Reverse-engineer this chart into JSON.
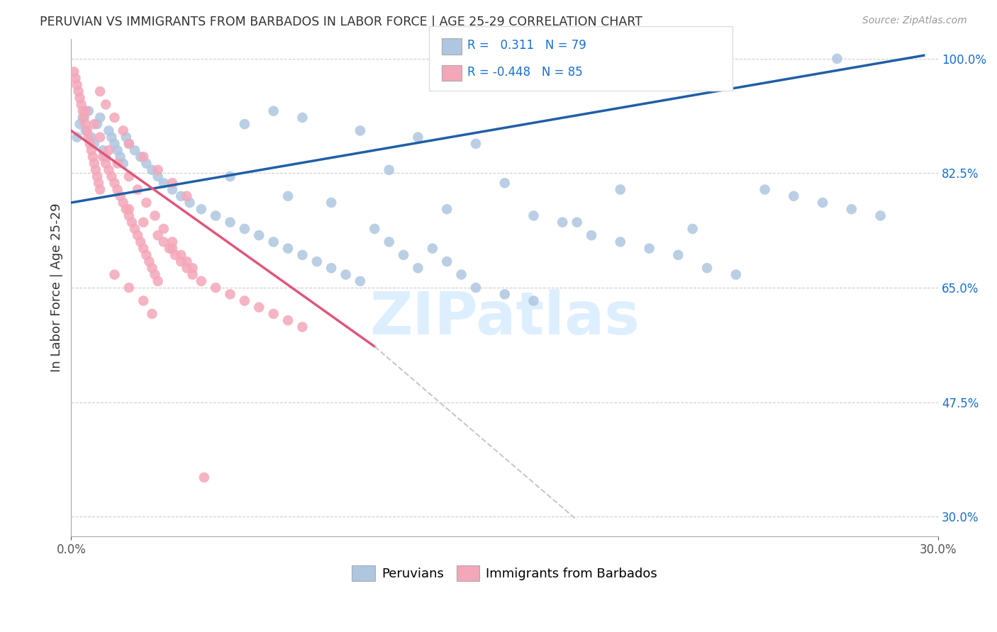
{
  "title": "PERUVIAN VS IMMIGRANTS FROM BARBADOS IN LABOR FORCE | AGE 25-29 CORRELATION CHART",
  "source": "Source: ZipAtlas.com",
  "ylabel": "In Labor Force | Age 25-29",
  "ytick_vals": [
    100.0,
    82.5,
    65.0,
    47.5,
    30.0
  ],
  "ytick_labels": [
    "100.0%",
    "82.5%",
    "65.0%",
    "47.5%",
    "30.0%"
  ],
  "xtick_left": "0.0%",
  "xtick_right": "30.0%",
  "xmin": 0.0,
  "xmax": 30.0,
  "ymin": 27.0,
  "ymax": 103.0,
  "blue_R": 0.311,
  "blue_N": 79,
  "pink_R": -0.448,
  "pink_N": 85,
  "blue_dot_color": "#aec6e0",
  "blue_line_color": "#1f5fa6",
  "pink_dot_color": "#f4a7b9",
  "pink_line_color": "#e0567a",
  "dash_color": "#c8c8c8",
  "watermark_color": "#ddeeff",
  "legend_blue": "Peruvians",
  "legend_pink": "Immigrants from Barbados",
  "title_color": "#333333",
  "source_color": "#999999",
  "axis_label_color": "#333333",
  "tick_color_right": "#1a6fcc",
  "grid_color": "#cccccc",
  "blue_trend": [
    0.0,
    78.0,
    29.5,
    100.5
  ],
  "pink_trend_solid": [
    0.0,
    89.0,
    10.5,
    56.0
  ],
  "pink_trend_dash": [
    10.5,
    56.0,
    17.5,
    29.5
  ],
  "blue_x": [
    0.2,
    0.3,
    0.4,
    0.5,
    0.6,
    0.7,
    0.8,
    0.9,
    1.0,
    1.1,
    1.2,
    1.3,
    1.4,
    1.5,
    1.6,
    1.7,
    1.8,
    1.9,
    2.0,
    2.2,
    2.4,
    2.6,
    2.8,
    3.0,
    3.2,
    3.5,
    3.8,
    4.1,
    4.5,
    5.0,
    5.5,
    6.0,
    6.5,
    7.0,
    7.5,
    8.0,
    8.5,
    9.0,
    9.5,
    10.0,
    10.5,
    11.0,
    11.5,
    12.0,
    12.5,
    13.0,
    13.5,
    14.0,
    15.0,
    16.0,
    17.0,
    18.0,
    19.0,
    20.0,
    21.0,
    22.0,
    23.0,
    24.0,
    25.0,
    26.0,
    27.0,
    28.0,
    6.0,
    7.0,
    8.0,
    10.0,
    12.0,
    14.0,
    11.0,
    5.5,
    15.0,
    19.0,
    7.5,
    9.0,
    13.0,
    16.0,
    17.5,
    21.5,
    26.5
  ],
  "blue_y": [
    88,
    90,
    91,
    89,
    92,
    88,
    87,
    90,
    91,
    86,
    85,
    89,
    88,
    87,
    86,
    85,
    84,
    88,
    87,
    86,
    85,
    84,
    83,
    82,
    81,
    80,
    79,
    78,
    77,
    76,
    75,
    74,
    73,
    72,
    71,
    70,
    69,
    68,
    67,
    66,
    74,
    72,
    70,
    68,
    71,
    69,
    67,
    65,
    64,
    63,
    75,
    73,
    72,
    71,
    70,
    68,
    67,
    80,
    79,
    78,
    77,
    76,
    90,
    92,
    91,
    89,
    88,
    87,
    83,
    82,
    81,
    80,
    79,
    78,
    77,
    76,
    75,
    74,
    100
  ],
  "pink_x": [
    0.1,
    0.15,
    0.2,
    0.25,
    0.3,
    0.35,
    0.4,
    0.45,
    0.5,
    0.55,
    0.6,
    0.65,
    0.7,
    0.75,
    0.8,
    0.85,
    0.9,
    0.95,
    1.0,
    1.1,
    1.2,
    1.3,
    1.4,
    1.5,
    1.6,
    1.7,
    1.8,
    1.9,
    2.0,
    2.1,
    2.2,
    2.3,
    2.4,
    2.5,
    2.6,
    2.7,
    2.8,
    2.9,
    3.0,
    3.2,
    3.4,
    3.6,
    3.8,
    4.0,
    4.2,
    4.5,
    5.0,
    5.5,
    6.0,
    6.5,
    7.0,
    7.5,
    8.0,
    1.0,
    1.2,
    1.5,
    1.8,
    2.0,
    2.5,
    3.0,
    3.5,
    4.0,
    2.0,
    2.5,
    3.0,
    3.5,
    4.0,
    1.5,
    2.0,
    2.5,
    2.8,
    0.5,
    0.8,
    1.0,
    1.3,
    1.6,
    2.0,
    2.3,
    2.6,
    2.9,
    3.2,
    3.5,
    3.8,
    4.2,
    4.6
  ],
  "pink_y": [
    98,
    97,
    96,
    95,
    94,
    93,
    92,
    91,
    90,
    89,
    88,
    87,
    86,
    85,
    84,
    83,
    82,
    81,
    80,
    85,
    84,
    83,
    82,
    81,
    80,
    79,
    78,
    77,
    76,
    75,
    74,
    73,
    72,
    71,
    70,
    69,
    68,
    67,
    66,
    72,
    71,
    70,
    69,
    68,
    67,
    66,
    65,
    64,
    63,
    62,
    61,
    60,
    59,
    95,
    93,
    91,
    89,
    87,
    85,
    83,
    81,
    79,
    77,
    75,
    73,
    71,
    69,
    67,
    65,
    63,
    61,
    92,
    90,
    88,
    86,
    84,
    82,
    80,
    78,
    76,
    74,
    72,
    70,
    68,
    36
  ]
}
